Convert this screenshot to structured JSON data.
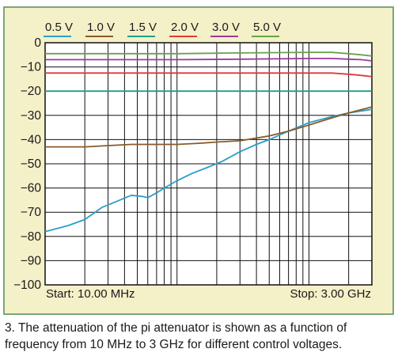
{
  "chart_data": {
    "type": "line",
    "xscale": "log",
    "xlim": [
      10,
      3000
    ],
    "ylim": [
      -100,
      0
    ],
    "grid": true,
    "legend_position": "top",
    "yticks": [
      0,
      -10,
      -20,
      -30,
      -40,
      -50,
      -60,
      -70,
      -80,
      -90,
      -100
    ],
    "ytick_labels": [
      "0",
      "−10",
      "−20",
      "−30",
      "−40",
      "−50",
      "−60",
      "−70",
      "−80",
      "−90",
      "−100"
    ],
    "start_label": "Start: 10.00 MHz",
    "stop_label": "Stop: 3.00 GHz",
    "series": [
      {
        "name": "0.5 V",
        "color": "#2b9fc9",
        "x": [
          10,
          15,
          20,
          27,
          35,
          45,
          55,
          60,
          70,
          80,
          100,
          130,
          170,
          220,
          300,
          400,
          500,
          700,
          1000,
          1500,
          2000,
          3000
        ],
        "y": [
          -78,
          -75.5,
          -73,
          -68,
          -65.5,
          -63,
          -63.5,
          -64,
          -62,
          -60,
          -57,
          -54,
          -51.5,
          -49,
          -45,
          -42,
          -40,
          -36.5,
          -33,
          -30.5,
          -29,
          -27.5
        ]
      },
      {
        "name": "1.0 V",
        "color": "#8b5a2b",
        "x": [
          10,
          20,
          30,
          45,
          70,
          100,
          150,
          200,
          300,
          500,
          700,
          1000,
          1500,
          2000,
          3000
        ],
        "y": [
          -43,
          -43,
          -42.5,
          -42,
          -42,
          -42,
          -41.5,
          -41,
          -40.5,
          -38.5,
          -36.5,
          -34,
          -31,
          -29,
          -26.5
        ]
      },
      {
        "name": "1.5 V",
        "color": "#1aa08c",
        "x": [
          10,
          100,
          1000,
          3000
        ],
        "y": [
          -20,
          -20,
          -20,
          -20
        ]
      },
      {
        "name": "2.0 V",
        "color": "#e03a3a",
        "x": [
          10,
          30,
          100,
          300,
          1000,
          1500,
          2000,
          2500,
          3000
        ],
        "y": [
          -12.5,
          -12.5,
          -12.5,
          -12.5,
          -12.5,
          -12.5,
          -13,
          -13.5,
          -14
        ]
      },
      {
        "name": "3.0 V",
        "color": "#9b3a9b",
        "x": [
          10,
          30,
          100,
          300,
          1000,
          1500,
          2000,
          2500,
          3000
        ],
        "y": [
          -7,
          -7,
          -7,
          -6.8,
          -6.5,
          -6.5,
          -6.8,
          -7,
          -7.5
        ]
      },
      {
        "name": "5.0 V",
        "color": "#6aa24a",
        "x": [
          10,
          30,
          100,
          300,
          1000,
          1500,
          2000,
          2500,
          3000
        ],
        "y": [
          -4.5,
          -4.5,
          -4.5,
          -4.2,
          -4,
          -4,
          -4.5,
          -5,
          -5.5
        ]
      }
    ]
  },
  "caption": "3. The attenuation of the pi attenuator is shown as a function of frequency from 10 MHz to 3 GHz for different control voltages."
}
